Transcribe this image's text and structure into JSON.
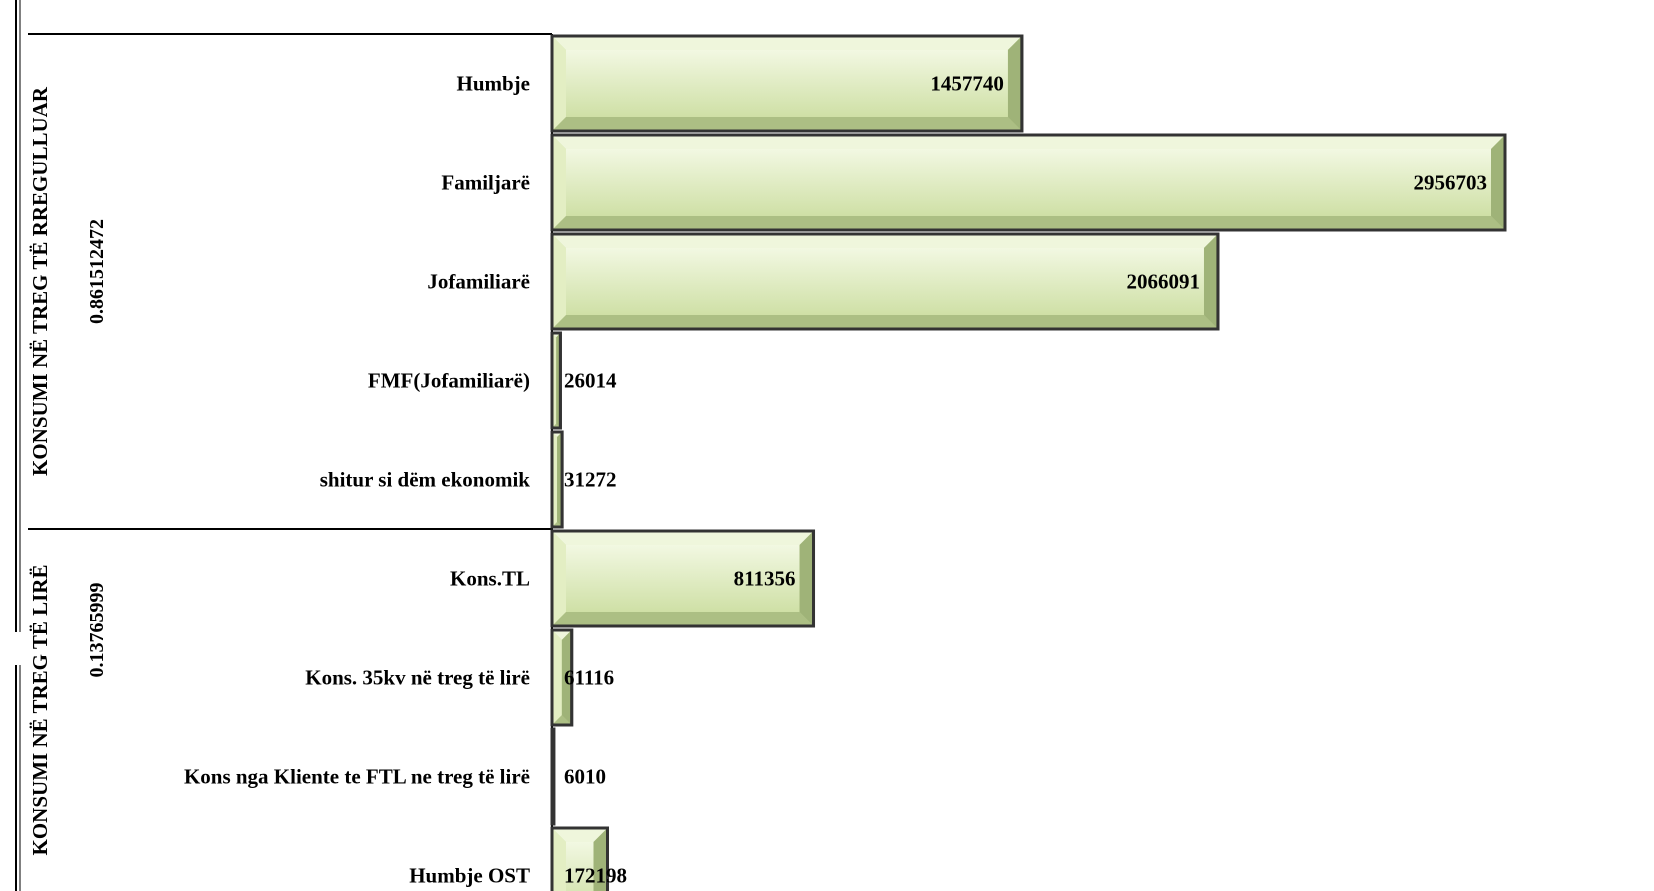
{
  "chart_data": {
    "type": "bar",
    "orientation": "horizontal",
    "colors": {
      "bar_fill": "#cfe0a6",
      "bar_light": "#f2f8e2",
      "bar_dark": "#8fa468",
      "bar_border": "#333333",
      "line": "#000000"
    },
    "groups": [
      {
        "label": "KONSUMI NË TREG TË RREGULLUAR",
        "ratio": "0.861512472",
        "categories": [
          "Humbje",
          "Familjarë",
          "Jofamiliarë",
          "FMF(Jofamiliarë)",
          "shitur si dëm ekonomik"
        ],
        "values": [
          1457740,
          2956703,
          2066091,
          26014,
          31272
        ]
      },
      {
        "label": "KONSUMI NË TREG TË LIRË",
        "ratio": "0.13765999",
        "categories": [
          "Kons.TL",
          "Kons. 35kv në treg të lirë",
          "Kons nga Kliente te FTL ne treg të lirë",
          "Humbje OST"
        ],
        "values": [
          811356,
          61116,
          6010,
          172198
        ]
      }
    ],
    "xlim": [
      0,
      3050000
    ]
  }
}
